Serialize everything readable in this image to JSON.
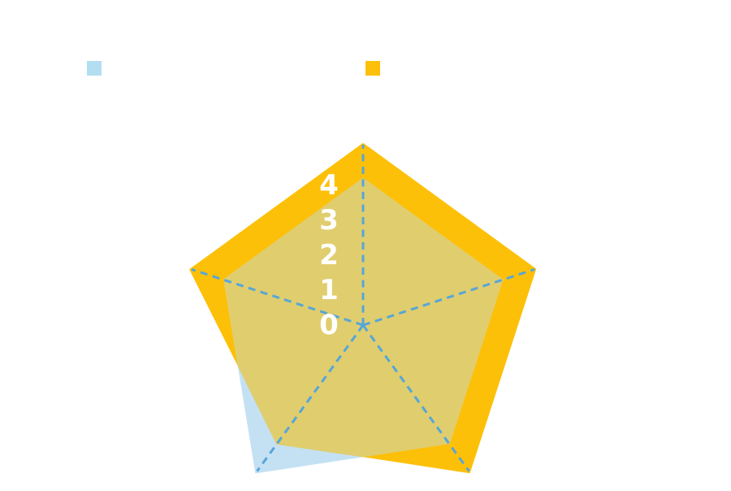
{
  "page": {
    "background_color": "#FFFFFF"
  },
  "legend": {
    "items": [
      {
        "label": "",
        "swatch_color": "#B3DEF2"
      },
      {
        "label": "",
        "swatch_color": "#FDC008"
      }
    ]
  },
  "chart_data": {
    "type": "radar",
    "axes_count": 5,
    "tick_labels": [
      "0",
      "1",
      "2",
      "3",
      "4"
    ],
    "scale": {
      "min": 0,
      "max": 5,
      "step": 1
    },
    "grid": {
      "radial_lines": "dashed",
      "line_color": "#56A6D8"
    },
    "series": [
      {
        "name": "",
        "values": [
          4,
          4,
          4,
          5,
          4
        ],
        "fill_color": "#C4E1F3",
        "overlap_color": "#E0CD6E",
        "legend_color": "#B3DEF2"
      },
      {
        "name": "",
        "values": [
          5,
          5,
          5,
          4,
          5
        ],
        "fill_color": "#FDC008",
        "legend_color": "#FDC008"
      }
    ]
  }
}
